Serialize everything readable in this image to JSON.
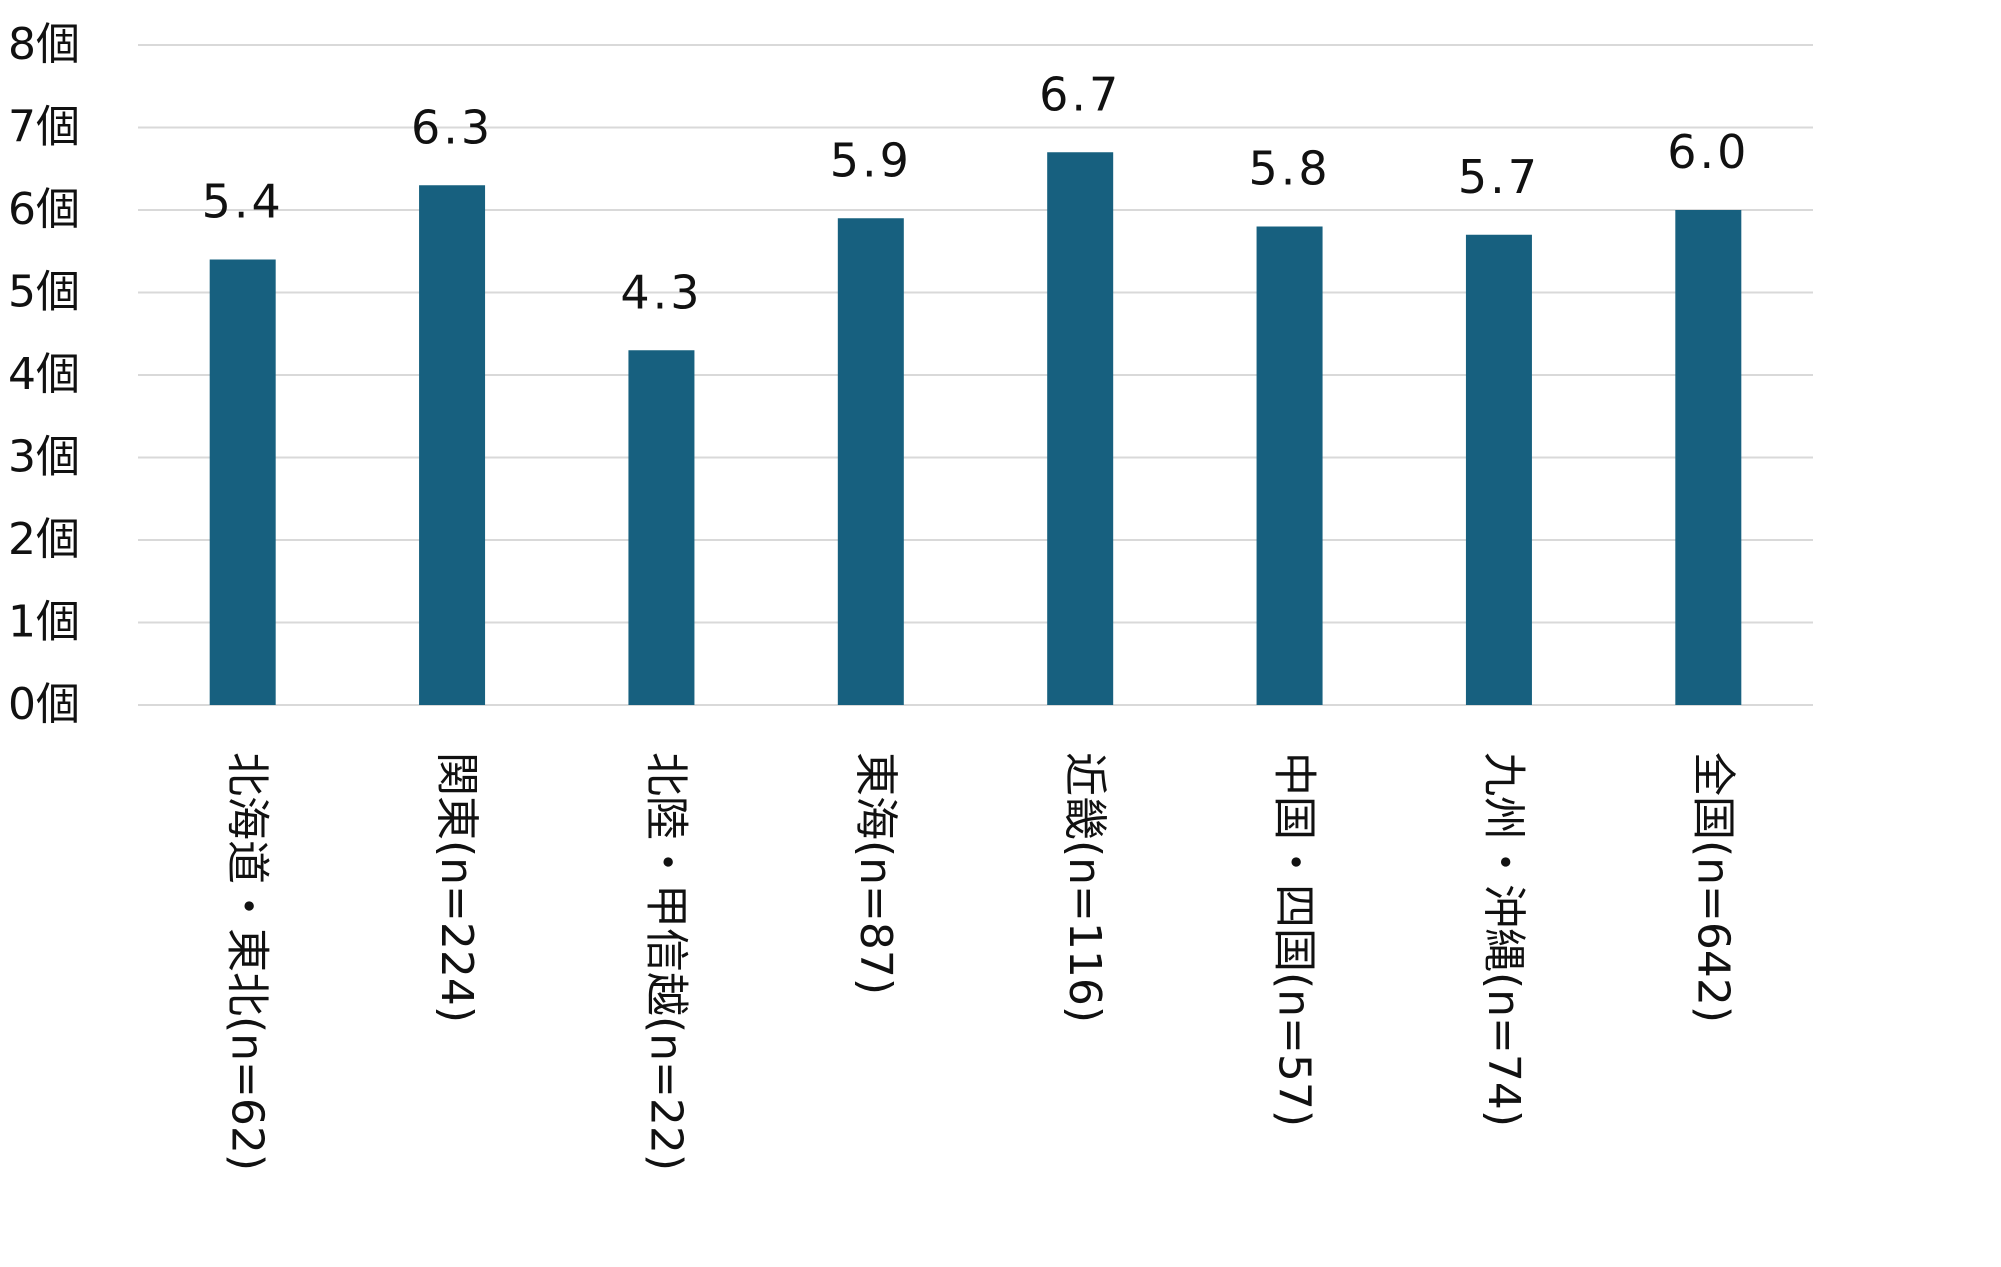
{
  "chart_data": {
    "type": "bar",
    "title": "",
    "xlabel": "",
    "ylabel": "",
    "ylim": [
      0,
      8
    ],
    "y_ticks": [
      0,
      1,
      2,
      3,
      4,
      5,
      6,
      7,
      8
    ],
    "y_tick_labels": [
      "0個",
      "1個",
      "2個",
      "3個",
      "4個",
      "5個",
      "6個",
      "7個",
      "8個"
    ],
    "grid": true,
    "legend": "none",
    "bar_color": "#17607f",
    "categories": [
      "北海道・東北(n=62)",
      "関東(n=224)",
      "北陸・甲信越(n=22)",
      "東海(n=87)",
      "近畿(n=116)",
      "中国・四国(n=57)",
      "九州・沖縄(n=74)",
      "全国(n=642)"
    ],
    "values": [
      5.4,
      6.3,
      4.3,
      5.9,
      6.7,
      5.8,
      5.7,
      6.0
    ],
    "data_labels": [
      "5.4",
      "6.3",
      "4.3",
      "5.9",
      "6.7",
      "5.8",
      "5.7",
      "6.0"
    ]
  }
}
